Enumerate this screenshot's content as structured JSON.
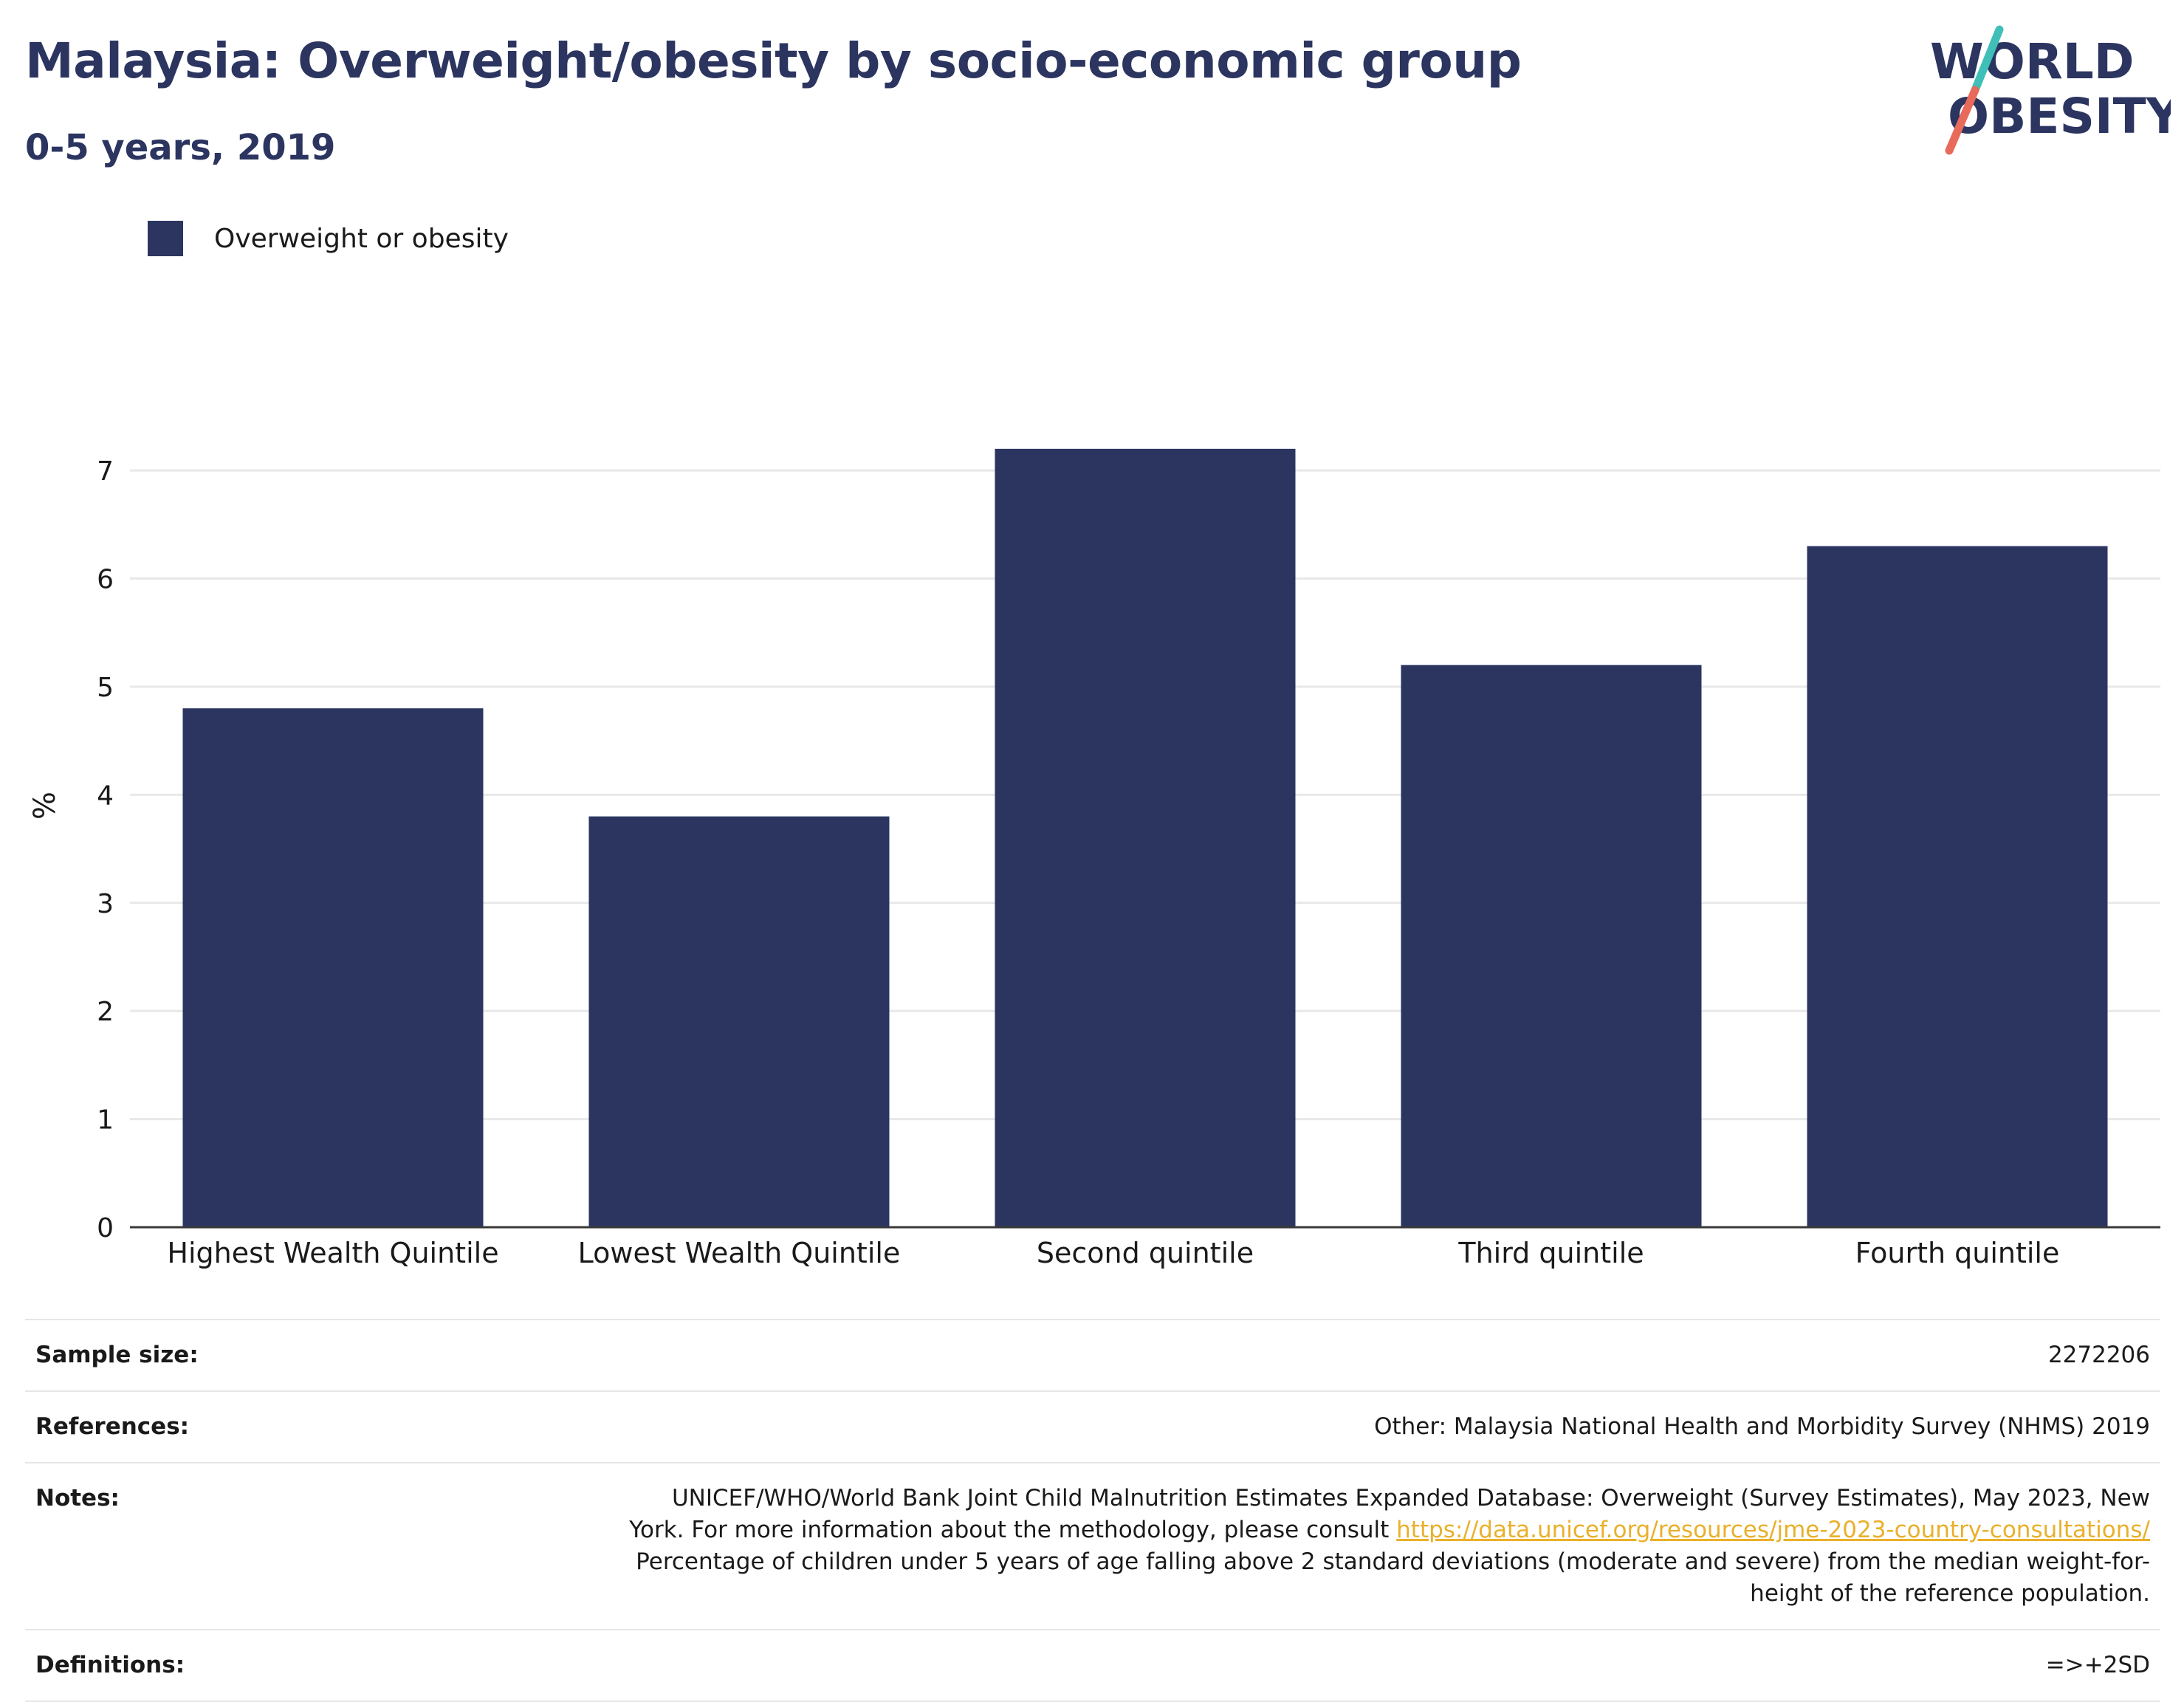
{
  "header": {
    "title": "Malaysia: Overweight/obesity by socio-economic group",
    "subtitle": "0-5 years, 2019"
  },
  "logo": {
    "line1": "WORLD",
    "line2": "OBESITY",
    "colors": {
      "text": "#2b3560",
      "slash_top": "#3fbfb7",
      "slash_bottom": "#e86a5b"
    }
  },
  "chart_data": {
    "type": "bar",
    "categories": [
      "Highest Wealth Quintile",
      "Lowest Wealth Quintile",
      "Second quintile",
      "Third quintile",
      "Fourth quintile"
    ],
    "series": [
      {
        "name": "Overweight or obesity",
        "values": [
          4.8,
          3.8,
          7.2,
          5.2,
          6.3
        ],
        "color": "#2b3560"
      }
    ],
    "ylabel": "%",
    "ylim": [
      0,
      7.8
    ],
    "yticks": [
      0,
      1,
      2,
      3,
      4,
      5,
      6,
      7
    ],
    "grid": true,
    "legend_position": "top-left"
  },
  "info": {
    "rows": [
      {
        "label": "Sample size:",
        "value": "2272206"
      },
      {
        "label": "References:",
        "value": "Other: Malaysia National Health and Morbidity Survey (NHMS) 2019"
      },
      {
        "label": "Notes:",
        "value_before": "UNICEF/WHO/World Bank Joint Child Malnutrition Estimates Expanded Database: Overweight (Survey Estimates), May 2023, New York. For more information about the methodology, please consult ",
        "link": "https://data.unicef.org/resources/jme-2023-country-consultations/",
        "value_after": " Percentage of children under 5 years of age falling above 2 standard deviations (moderate and severe) from the median weight-for-height of the reference population."
      },
      {
        "label": "Definitions:",
        "value": "=>+2SD"
      }
    ]
  }
}
